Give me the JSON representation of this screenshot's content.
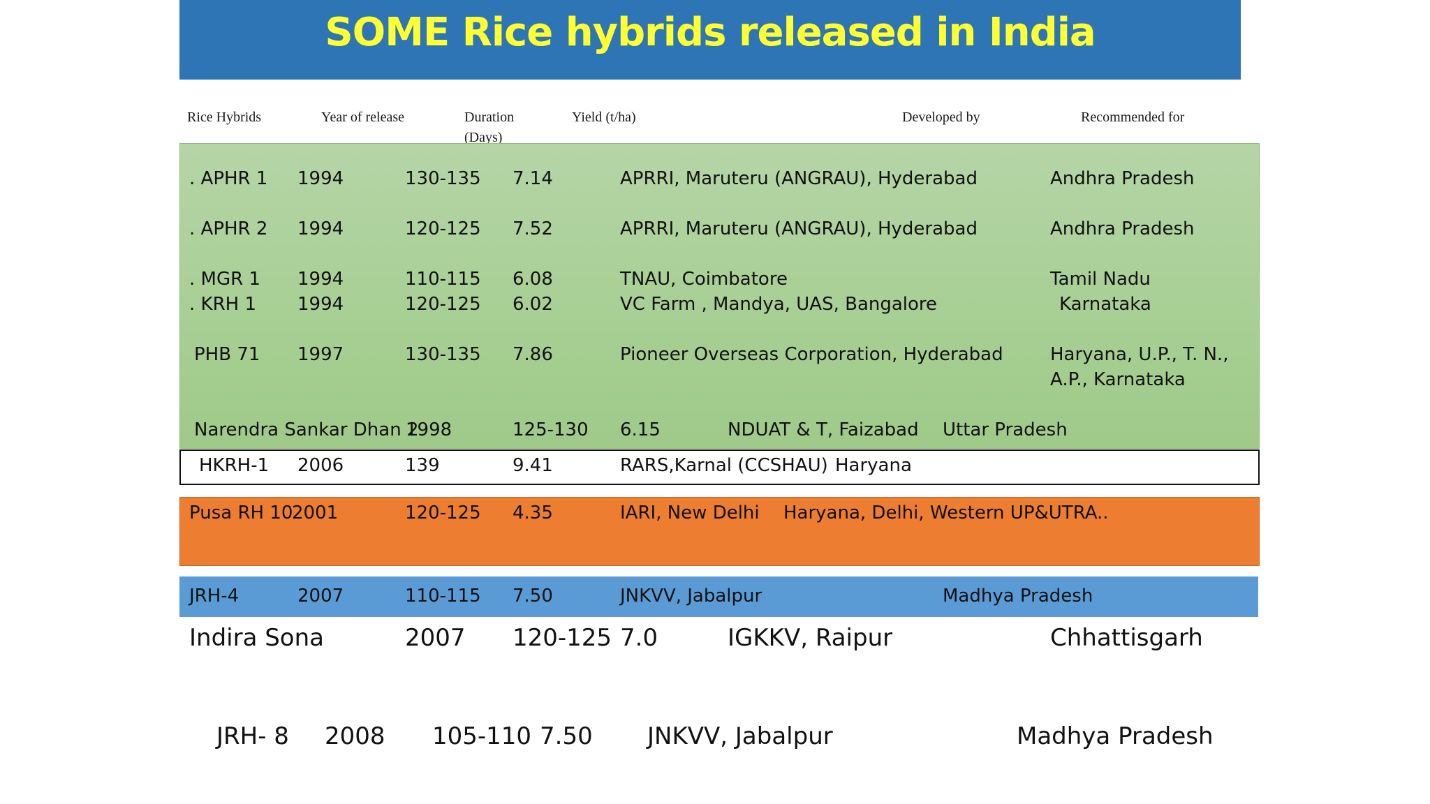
{
  "title": "SOME Rice hybrids released in India",
  "headers": {
    "hybrid": "Rice Hybrids",
    "year": "Year of release",
    "duration": "Duration",
    "duration_unit": "(Days)",
    "yield": "Yield (t/ha)",
    "developer": "Developed by",
    "recommended": "Recommended for"
  },
  "rows": [
    {
      "hybrid": ". APHR 1",
      "year": "1994",
      "duration": "130-135",
      "yield": "7.14",
      "developer": "APRRI, Maruteru (ANGRAU), Hyderabad",
      "recommended": "Andhra Pradesh"
    },
    {
      "hybrid": ". APHR 2",
      "year": "1994",
      "duration": "120-125",
      "yield": "7.52",
      "developer": "APRRI, Maruteru (ANGRAU), Hyderabad",
      "recommended": "Andhra Pradesh"
    },
    {
      "hybrid": ". MGR 1",
      "year": "1994",
      "duration": "110-115",
      "yield": "6.08",
      "developer": "TNAU, Coimbatore",
      "recommended": "Tamil Nadu"
    },
    {
      "hybrid": ". KRH 1",
      "year": "1994",
      "duration": "120-125",
      "yield": "6.02",
      "developer": "VC Farm , Mandya, UAS, Bangalore",
      "recommended": "Karnataka"
    },
    {
      "hybrid": "PHB 71",
      "year": "1997",
      "duration": "130-135",
      "yield": "7.86",
      "developer": "Pioneer Overseas Corporation, Hyderabad",
      "recommended": "Haryana, U.P., T. N.,",
      "recommended_2": "A.P., Karnataka"
    },
    {
      "hybrid": "Narendra Sankar Dhan 2",
      "year": "1998",
      "duration": "125-130",
      "yield": "6.15",
      "developer": "NDUAT & T, Faizabad",
      "recommended": "Uttar Pradesh"
    },
    {
      "hybrid": "HKRH-1",
      "year": "2006",
      "duration": "139",
      "yield": "9.41",
      "developer": "RARS,Karnal (CCSHAU)",
      "recommended": "Haryana"
    },
    {
      "hybrid": "Pusa RH 10",
      "year": "2001",
      "duration": "120-125",
      "yield": "4.35",
      "developer": "IARI, New Delhi",
      "recommended": "Haryana, Delhi, Western UP&UTRA.."
    },
    {
      "hybrid": "JRH-4",
      "year": "2007",
      "duration": "110-115",
      "yield": "7.50",
      "developer": "JNKVV, Jabalpur",
      "recommended": "Madhya Pradesh"
    },
    {
      "hybrid": "Indira Sona",
      "year": "2007",
      "duration": "120-125",
      "yield": "7.0",
      "developer": "IGKKV,  Raipur",
      "recommended": "Chhattisgarh"
    },
    {
      "hybrid": "JRH- 8",
      "year": "2008",
      "duration": "105-110",
      "yield": "7.50",
      "developer": "JNKVV, Jabalpur",
      "recommended": "Madhya Pradesh"
    }
  ],
  "colors": {
    "title_bar": "#2e75b6",
    "title_text": "#ffff33",
    "green_band": "#a9d18e",
    "orange_band": "#ed7d31",
    "blue_band": "#5b9bd5"
  }
}
